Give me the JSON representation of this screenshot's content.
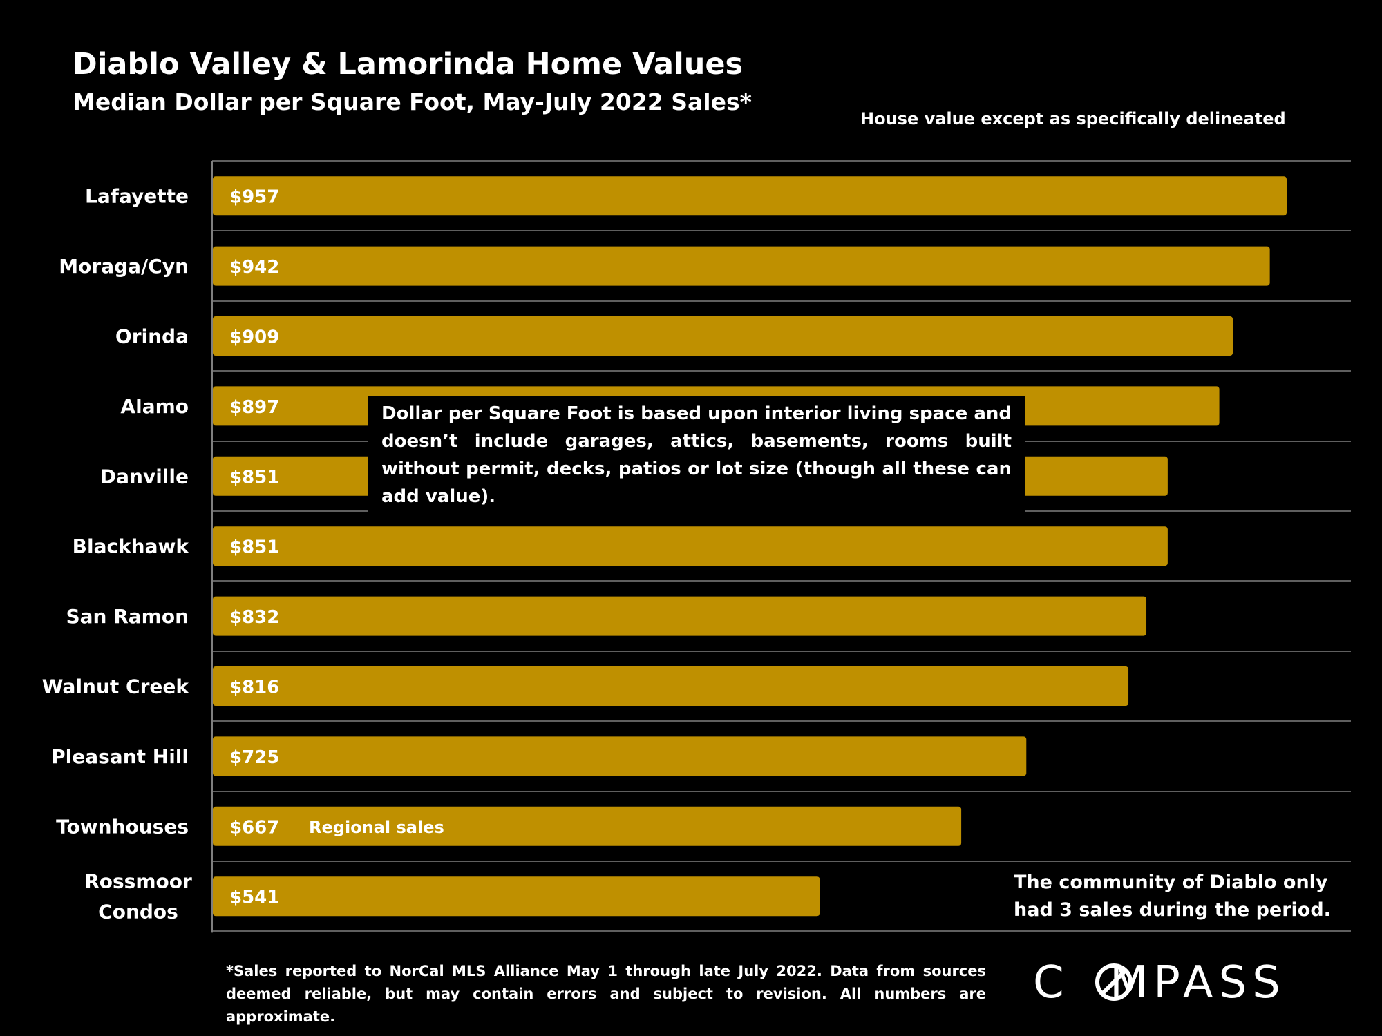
{
  "header": {
    "title": "Diablo Valley & Lamorinda Home Values",
    "subtitle": "Median Dollar per Square Foot, May-July 2022 Sales*",
    "note": "House value except as specifically delineated"
  },
  "chart_data": {
    "type": "bar",
    "orientation": "horizontal",
    "title": "Diablo Valley & Lamorinda Home Values",
    "subtitle": "Median Dollar per Square Foot, May-July 2022 Sales*",
    "categories": [
      "Lafayette",
      "Moraga/Cyn",
      "Orinda",
      "Alamo",
      "Danville",
      "Blackhawk",
      "San Ramon",
      "Walnut Creek",
      "Pleasant Hill",
      "Townhouses",
      "Rossmoor Condos"
    ],
    "values": [
      957,
      942,
      909,
      897,
      851,
      851,
      832,
      816,
      725,
      667,
      541
    ],
    "value_labels": [
      "$957",
      "$942",
      "$909",
      "$897",
      "$851",
      "$851",
      "$832",
      "$816",
      "$725",
      "$667",
      "$541"
    ],
    "xlim": [
      0,
      1000
    ],
    "grid": "horizontal separators",
    "bar_color": "#BF9000",
    "annotations": [
      "Dollar per Square Foot is based upon interior living space and doesn’t include garages, attics, basements, rooms built without permit, decks, patios or lot size (though all these can add value).",
      "Regional sales",
      "The community of Diablo only had 3 sales during the period."
    ]
  },
  "annotations": {
    "callout": "Dollar per Square Foot is based upon interior living space and doesn’t include garages, attics, basements, rooms built without permit, decks, patios or lot size (though all these can add value).",
    "regional": "Regional sales",
    "diablo_line1": "The community of Diablo only",
    "diablo_line2": "had 3 sales during the period."
  },
  "footer": {
    "footnote": "*Sales reported to NorCal MLS Alliance May 1 through late July 2022. Data from sources deemed reliable, but may contain errors and subject to revision. All numbers are approximate.",
    "logo": "COMPASS"
  },
  "colors": {
    "background": "#000000",
    "bar": "#BF9000",
    "text": "#FFFFFF",
    "separator": "#7F7F7F"
  }
}
